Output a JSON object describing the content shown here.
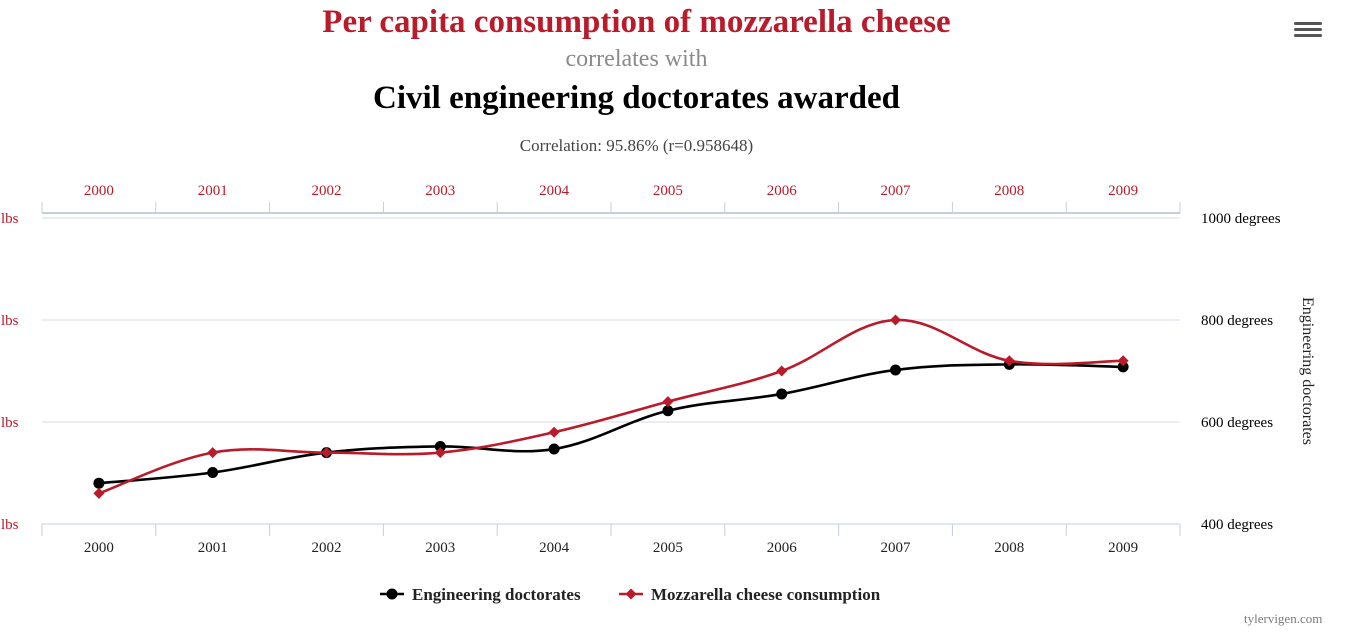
{
  "header": {
    "title": "Per capita consumption of mozzarella cheese",
    "correlates": "correlates with",
    "subtitle": "Civil engineering doctorates awarded",
    "correlation": "Correlation: 95.86% (r=0.958648)"
  },
  "credit": "tylervigen.com",
  "chart_data": {
    "type": "line",
    "categories": [
      "2000",
      "2001",
      "2002",
      "2003",
      "2004",
      "2005",
      "2006",
      "2007",
      "2008",
      "2009"
    ],
    "series": [
      {
        "name": "Engineering doctorates",
        "axis": "right",
        "color": "#000000",
        "marker": "circle",
        "values": [
          480,
          501,
          540,
          552,
          547,
          622,
          655,
          702,
          713,
          708
        ]
      },
      {
        "name": "Mozzarella cheese consumption",
        "axis": "left",
        "color": "#b91b2b",
        "marker": "diamond",
        "values": [
          9.3,
          9.7,
          9.7,
          9.7,
          9.9,
          10.2,
          10.5,
          11.0,
          10.6,
          10.6
        ]
      }
    ],
    "left_axis": {
      "ticks": [
        "lbs",
        "lbs",
        "lbs",
        "lbs"
      ],
      "range": [
        9.0,
        12.0
      ],
      "color": "#b91b2b"
    },
    "right_axis": {
      "ticks": [
        "1000 degrees",
        "800 degrees",
        "600 degrees",
        "400 degrees"
      ],
      "range": [
        400,
        1000
      ],
      "title": "Engineering doctorates",
      "color": "#000000"
    },
    "top_axis_color": "#b91b2b",
    "grid": true,
    "legend_position": "bottom-center"
  }
}
